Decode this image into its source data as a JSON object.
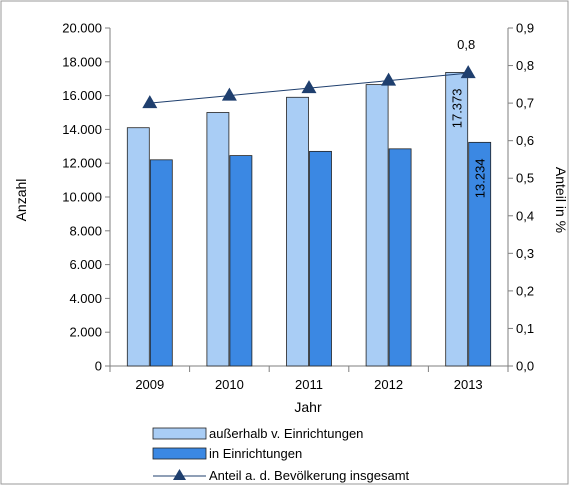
{
  "chart_data": {
    "type": "bar",
    "categories": [
      "2009",
      "2010",
      "2011",
      "2012",
      "2013"
    ],
    "series": [
      {
        "name": "außerhalb v. Einrichtungen",
        "type": "bar",
        "axis": "left",
        "color": "#a9cdf5",
        "values": [
          14100,
          15000,
          15900,
          16650,
          17373
        ]
      },
      {
        "name": "in Einrichtungen",
        "type": "bar",
        "axis": "left",
        "color": "#3b88e3",
        "values": [
          12200,
          12450,
          12700,
          12850,
          13234
        ]
      },
      {
        "name": "Anteil a. d. Bevölkerung insgesamt",
        "type": "line",
        "axis": "right",
        "color": "#1f3f6e",
        "values": [
          0.7,
          0.72,
          0.74,
          0.76,
          0.78
        ]
      }
    ],
    "xlabel": "Jahr",
    "ylabel": "Anzahl",
    "y2label": "Anteil in %",
    "ylim": [
      0,
      20000
    ],
    "y2lim": [
      0,
      0.9
    ],
    "yticks": [
      "0",
      "2.000",
      "4.000",
      "6.000",
      "8.000",
      "10.000",
      "12.000",
      "14.000",
      "16.000",
      "18.000",
      "20.000"
    ],
    "y2ticks": [
      "0,0",
      "0,1",
      "0,2",
      "0,3",
      "0,4",
      "0,5",
      "0,6",
      "0,7",
      "0,8",
      "0,9"
    ],
    "data_labels": [
      {
        "text": "17.373",
        "series": 0,
        "index": 4,
        "vertical": true
      },
      {
        "text": "13.234",
        "series": 1,
        "index": 4,
        "vertical": true
      },
      {
        "text": "0,8",
        "series": 2,
        "index": 4,
        "vertical": false
      }
    ],
    "legend_position": "bottom",
    "grid": false
  }
}
